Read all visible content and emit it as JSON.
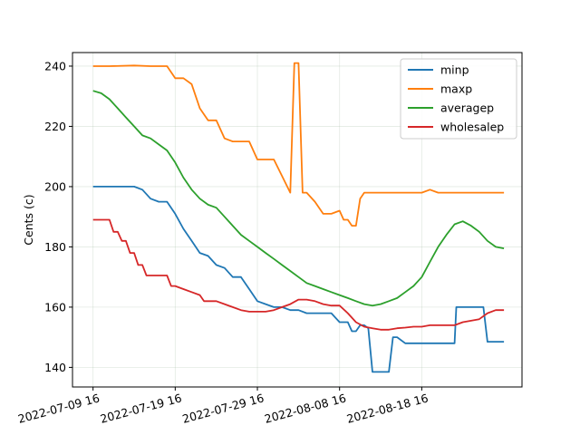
{
  "chart_data": {
    "type": "line",
    "title": "",
    "xlabel": "",
    "ylabel": "Cents (c)",
    "grid": true,
    "legend_position": "top-right",
    "x_ticks": [
      "2022-07-09 16",
      "2022-07-19 16",
      "2022-07-29 16",
      "2022-08-08 16",
      "2022-08-18 16"
    ],
    "x_tick_offsets_days": [
      0,
      10,
      20,
      30,
      40
    ],
    "xlim_days": [
      -2.5,
      52.2
    ],
    "y_ticks": [
      140,
      160,
      180,
      200,
      220,
      240
    ],
    "ylim": [
      133.5,
      244.5
    ],
    "series": [
      {
        "name": "minp",
        "color": "#1f77b4",
        "points": [
          [
            0,
            200
          ],
          [
            1,
            200
          ],
          [
            2,
            200
          ],
          [
            3,
            200
          ],
          [
            4,
            200
          ],
          [
            5,
            200
          ],
          [
            6,
            199
          ],
          [
            7,
            196
          ],
          [
            8,
            195
          ],
          [
            9,
            195
          ],
          [
            10,
            191
          ],
          [
            11,
            186
          ],
          [
            12,
            182
          ],
          [
            13,
            178
          ],
          [
            14,
            177
          ],
          [
            15,
            174
          ],
          [
            16,
            173
          ],
          [
            17,
            170
          ],
          [
            18,
            170
          ],
          [
            19,
            166
          ],
          [
            20,
            162
          ],
          [
            21,
            161
          ],
          [
            22,
            160
          ],
          [
            23,
            160
          ],
          [
            24,
            159
          ],
          [
            25,
            159
          ],
          [
            26,
            158
          ],
          [
            27,
            158
          ],
          [
            28,
            158
          ],
          [
            29,
            158
          ],
          [
            30,
            155
          ],
          [
            31,
            155
          ],
          [
            31.5,
            152
          ],
          [
            32,
            152
          ],
          [
            32.5,
            154
          ],
          [
            33,
            154
          ],
          [
            33.5,
            153
          ],
          [
            34,
            138.5
          ],
          [
            35,
            138.5
          ],
          [
            36,
            138.5
          ],
          [
            36.5,
            150
          ],
          [
            37,
            150
          ],
          [
            38,
            148
          ],
          [
            39,
            148
          ],
          [
            40,
            148
          ],
          [
            41,
            148
          ],
          [
            42,
            148
          ],
          [
            44,
            148
          ],
          [
            44.2,
            160
          ],
          [
            45,
            160
          ],
          [
            47,
            160
          ],
          [
            47.5,
            160
          ],
          [
            48,
            148.5
          ],
          [
            50,
            148.5
          ]
        ]
      },
      {
        "name": "maxp",
        "color": "#ff7f0e",
        "points": [
          [
            0,
            240
          ],
          [
            2,
            240
          ],
          [
            5,
            240.2
          ],
          [
            7,
            240
          ],
          [
            9,
            240
          ],
          [
            10,
            236
          ],
          [
            11,
            236
          ],
          [
            12,
            234
          ],
          [
            13,
            226
          ],
          [
            14,
            222
          ],
          [
            15,
            222
          ],
          [
            16,
            216
          ],
          [
            17,
            215
          ],
          [
            18,
            215
          ],
          [
            19,
            215
          ],
          [
            20,
            209
          ],
          [
            21,
            209
          ],
          [
            22,
            209
          ],
          [
            24,
            198
          ],
          [
            24.5,
            241
          ],
          [
            25,
            241
          ],
          [
            25.5,
            198
          ],
          [
            26,
            198
          ],
          [
            27,
            195
          ],
          [
            28,
            191
          ],
          [
            29,
            191
          ],
          [
            30,
            192
          ],
          [
            30.5,
            189
          ],
          [
            31,
            189
          ],
          [
            31.5,
            187
          ],
          [
            32,
            187
          ],
          [
            32.5,
            196
          ],
          [
            33,
            198
          ],
          [
            35,
            198
          ],
          [
            38,
            198
          ],
          [
            40,
            198
          ],
          [
            41,
            199
          ],
          [
            42,
            198
          ],
          [
            44,
            198
          ],
          [
            46,
            198
          ],
          [
            48,
            198
          ],
          [
            50,
            198
          ]
        ]
      },
      {
        "name": "averagep",
        "color": "#2ca02c",
        "points": [
          [
            0,
            231.8
          ],
          [
            1,
            231
          ],
          [
            2,
            229
          ],
          [
            3,
            226
          ],
          [
            4,
            223
          ],
          [
            5,
            220
          ],
          [
            6,
            217
          ],
          [
            7,
            216
          ],
          [
            8,
            214
          ],
          [
            9,
            212
          ],
          [
            10,
            208
          ],
          [
            11,
            203
          ],
          [
            12,
            199
          ],
          [
            13,
            196
          ],
          [
            14,
            194
          ],
          [
            15,
            193
          ],
          [
            16,
            190
          ],
          [
            17,
            187
          ],
          [
            18,
            184
          ],
          [
            19,
            182
          ],
          [
            20,
            180
          ],
          [
            21,
            178
          ],
          [
            22,
            176
          ],
          [
            23,
            174
          ],
          [
            24,
            172
          ],
          [
            25,
            170
          ],
          [
            26,
            168
          ],
          [
            27,
            167
          ],
          [
            28,
            166
          ],
          [
            29,
            165
          ],
          [
            30,
            164
          ],
          [
            31,
            163
          ],
          [
            32,
            162
          ],
          [
            33,
            161
          ],
          [
            34,
            160.5
          ],
          [
            35,
            161
          ],
          [
            36,
            162
          ],
          [
            37,
            163
          ],
          [
            38,
            165
          ],
          [
            39,
            167
          ],
          [
            40,
            170
          ],
          [
            41,
            175
          ],
          [
            42,
            180
          ],
          [
            43,
            184
          ],
          [
            44,
            187.5
          ],
          [
            45,
            188.5
          ],
          [
            46,
            187
          ],
          [
            47,
            185
          ],
          [
            48,
            182
          ],
          [
            49,
            180
          ],
          [
            50,
            179.5
          ]
        ]
      },
      {
        "name": "wholesalep",
        "color": "#d62728",
        "points": [
          [
            0,
            189
          ],
          [
            2,
            189
          ],
          [
            2.5,
            185
          ],
          [
            3,
            185
          ],
          [
            3.5,
            182
          ],
          [
            4,
            182
          ],
          [
            4.5,
            178
          ],
          [
            5,
            178
          ],
          [
            5.5,
            174
          ],
          [
            6,
            174
          ],
          [
            6.5,
            170.5
          ],
          [
            7,
            170.5
          ],
          [
            9,
            170.5
          ],
          [
            9.5,
            167
          ],
          [
            10,
            167
          ],
          [
            11,
            166
          ],
          [
            12,
            165
          ],
          [
            13,
            164
          ],
          [
            13.5,
            162
          ],
          [
            15,
            162
          ],
          [
            16,
            161
          ],
          [
            17,
            160
          ],
          [
            18,
            159
          ],
          [
            19,
            158.5
          ],
          [
            20,
            158.5
          ],
          [
            21,
            158.5
          ],
          [
            22,
            159
          ],
          [
            23,
            160
          ],
          [
            24,
            161
          ],
          [
            25,
            162.5
          ],
          [
            26,
            162.5
          ],
          [
            27,
            162
          ],
          [
            28,
            161
          ],
          [
            29,
            160.5
          ],
          [
            30,
            160.5
          ],
          [
            31,
            158
          ],
          [
            32,
            155
          ],
          [
            33,
            153.5
          ],
          [
            34,
            153
          ],
          [
            35,
            152.5
          ],
          [
            36,
            152.5
          ],
          [
            37,
            153
          ],
          [
            38,
            153.2
          ],
          [
            39,
            153.5
          ],
          [
            40,
            153.5
          ],
          [
            41,
            154
          ],
          [
            42,
            154
          ],
          [
            44,
            154
          ],
          [
            45,
            155
          ],
          [
            46,
            155.5
          ],
          [
            47,
            156
          ],
          [
            48,
            158
          ],
          [
            49,
            159
          ],
          [
            50,
            159
          ]
        ]
      }
    ]
  }
}
